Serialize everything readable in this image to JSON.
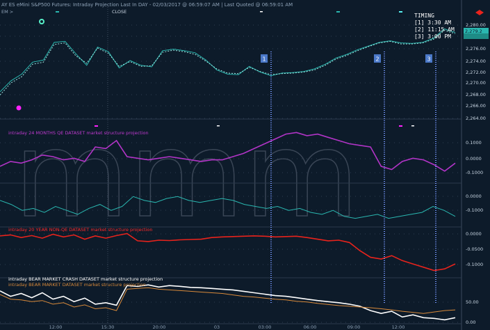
{
  "header": {
    "title": "AY ES eMini S&P500 Futures: Intraday Projection Last In DAY - 02/03/2017 @ 06:59:07 AM | Last Quoted @ 06:59:01 AM",
    "sub_left": "EM >",
    "sub_right": "CLOSE"
  },
  "timing": {
    "title": "TIMING",
    "items": [
      "[1] 3:30 AM",
      "[2] 11:15 AM",
      "[3] 3:00 PM"
    ]
  },
  "markers": [
    "1",
    "2",
    "3"
  ],
  "price_badges": [
    "2,280.00",
    "2,279.2"
  ],
  "chart_data": {
    "type": "line",
    "x_ticks": [
      "12:00",
      "15:30",
      "20:00",
      "03",
      "03:00",
      "06:00",
      "09:00",
      "12:00"
    ],
    "panels": [
      {
        "id": "price",
        "title": "",
        "y_ticks": [
          "2,280.00",
          "2,278.00",
          "2,276.00",
          "2,274.00",
          "2,272.00",
          "2,270.00",
          "2,268.00",
          "2,266.00",
          "2,264.00"
        ],
        "ylim": [
          2263,
          2282
        ],
        "color": "#2ab7b0",
        "series": [
          {
            "values": [
              2268.1,
              2270.2,
              2271.5,
              2273.8,
              2274.2,
              2277.6,
              2277.8,
              2275.4,
              2273.2,
              2276.7,
              2275.8,
              2272.7,
              2274.1,
              2273.2,
              2272.9,
              2276.0,
              2276.3,
              2276.0,
              2275.6,
              2274.2,
              2272.3,
              2271.5,
              2271.4,
              2273.0,
              2271.9,
              2271.2,
              2271.7,
              2271.8,
              2272.0,
              2272.5,
              2273.4,
              2274.6,
              2275.3,
              2276.2,
              2276.9,
              2277.6,
              2277.9,
              2277.5,
              2277.4,
              2277.6,
              2278.4,
              2280.2,
              2279.5
            ]
          },
          {
            "values": [
              2267.5,
              2269.8,
              2271.0,
              2273.4,
              2273.8,
              2277.2,
              2277.5,
              2275.0,
              2273.6,
              2276.5,
              2275.5,
              2273.0,
              2273.9,
              2273.0,
              2273.1,
              2275.7,
              2276.1,
              2275.8,
              2275.3,
              2274.0,
              2272.5,
              2271.7,
              2271.6,
              2272.8,
              2272.0,
              2271.4,
              2271.6,
              2271.7,
              2271.9,
              2272.3,
              2273.2,
              2274.4,
              2275.1,
              2276.0,
              2276.8,
              2277.5,
              2277.8,
              2277.3,
              2277.3,
              2277.5,
              2278.2,
              2279.9,
              2279.3
            ]
          }
        ]
      },
      {
        "id": "qe24",
        "title": "intraday 24 MONTHS QE DATASET market structure projection",
        "y_ticks": [
          "0.1000",
          "0.0000",
          "-0.1000"
        ],
        "ylim": [
          -0.16,
          0.16
        ],
        "color": "#b234c7",
        "series": [
          {
            "values": [
              -0.06,
              -0.03,
              -0.04,
              -0.02,
              0.01,
              0.0,
              -0.02,
              -0.01,
              -0.03,
              0.06,
              0.05,
              0.1,
              0.0,
              -0.01,
              -0.02,
              -0.01,
              0.0,
              -0.01,
              -0.02,
              -0.03,
              -0.02,
              -0.02,
              0.0,
              0.02,
              0.05,
              0.08,
              0.11,
              0.14,
              0.15,
              0.13,
              0.14,
              0.12,
              0.1,
              0.08,
              0.07,
              0.06,
              -0.06,
              -0.08,
              -0.03,
              -0.01,
              -0.02,
              -0.05,
              -0.09,
              -0.04
            ]
          }
        ]
      },
      {
        "id": "cyan2",
        "title": "",
        "y_ticks": [
          "0.0000",
          "-0.1000"
        ],
        "ylim": [
          -0.15,
          0.05
        ],
        "color": "#2ab7b0",
        "series": [
          {
            "values": [
              -0.02,
              -0.04,
              -0.07,
              -0.06,
              -0.08,
              -0.05,
              -0.07,
              -0.09,
              -0.06,
              -0.04,
              -0.07,
              -0.05,
              0.0,
              -0.02,
              -0.03,
              -0.01,
              0.0,
              -0.02,
              -0.03,
              -0.02,
              -0.01,
              -0.02,
              -0.04,
              -0.05,
              -0.06,
              -0.05,
              -0.07,
              -0.06,
              -0.08,
              -0.09,
              -0.07,
              -0.1,
              -0.11,
              -0.1,
              -0.09,
              -0.11,
              -0.1,
              -0.09,
              -0.08,
              -0.05,
              -0.07,
              -0.1
            ]
          }
        ]
      },
      {
        "id": "nonqe20",
        "title": "intraday 20 YEAR NON-QE DATASET market structure  projection",
        "y_ticks": [
          "0.0000",
          "-0.0500",
          "-0.1000"
        ],
        "ylim": [
          -0.14,
          0.01
        ],
        "color": "#e8231c",
        "series": [
          {
            "values": [
              -0.015,
              -0.012,
              -0.02,
              -0.014,
              -0.022,
              -0.01,
              -0.018,
              -0.012,
              -0.025,
              -0.015,
              -0.022,
              -0.014,
              -0.008,
              -0.03,
              -0.032,
              -0.028,
              -0.029,
              -0.027,
              -0.026,
              -0.025,
              -0.02,
              -0.018,
              -0.017,
              -0.016,
              -0.015,
              -0.016,
              -0.018,
              -0.017,
              -0.016,
              -0.02,
              -0.025,
              -0.03,
              -0.028,
              -0.035,
              -0.06,
              -0.08,
              -0.085,
              -0.075,
              -0.09,
              -0.1,
              -0.11,
              -0.12,
              -0.115,
              -0.1
            ]
          }
        ]
      },
      {
        "id": "bear",
        "title": "intraday BEAR MARKET CRASH  DATASET  market structure projection",
        "title2": "intraday BEAR MARKET DATASET  market structure projection",
        "y_ticks": [
          "50.00",
          "0.00"
        ],
        "ylim": [
          -5,
          120
        ],
        "color": "#ffffff",
        "series": [
          {
            "name": "intraday BEAR MARKET CRASH  DATASET  market structure projection",
            "values": [
              85,
              70,
              78,
              66,
              80,
              62,
              70,
              55,
              65,
              48,
              52,
              45,
              100,
              98,
              102,
              96,
              100,
              98,
              95,
              94,
              92,
              90,
              88,
              84,
              80,
              76,
              72,
              70,
              66,
              62,
              58,
              55,
              52,
              48,
              42,
              30,
              22,
              28,
              12,
              18,
              10,
              8,
              4,
              10
            ]
          },
          {
            "name": "intraday BEAR MARKET DATASET  market structure projection",
            "values": [
              75,
              62,
              60,
              55,
              58,
              48,
              52,
              40,
              46,
              35,
              38,
              30,
              90,
              92,
              94,
              90,
              88,
              86,
              84,
              82,
              80,
              78,
              74,
              70,
              68,
              65,
              62,
              60,
              56,
              54,
              50,
              47,
              44,
              42,
              40,
              38,
              35,
              32,
              28,
              25,
              22,
              26,
              30,
              32
            ]
          }
        ]
      }
    ]
  }
}
